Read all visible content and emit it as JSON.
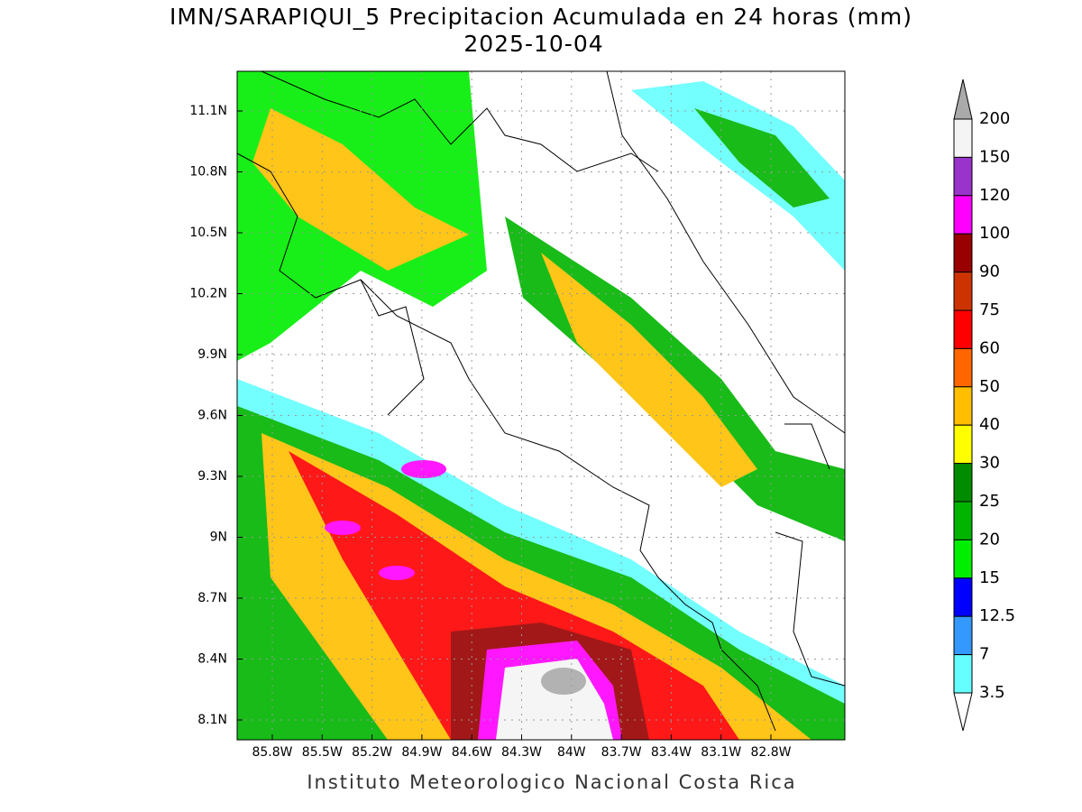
{
  "map": {
    "title": "IMN/SARAPIQUI_5 Precipitacion Acumulada en 24 horas (mm)",
    "date": "2025-10-04",
    "lat_labels": [
      "11.1N",
      "10.8N",
      "10.5N",
      "10.2N",
      "9.9N",
      "9.6N",
      "9.3N",
      "9N",
      "8.7N",
      "8.4N",
      "8.1N"
    ],
    "lon_labels": [
      "85.8W",
      "85.5W",
      "85.2W",
      "84.9W",
      "84.6W",
      "84.3W",
      "84W",
      "83.7W",
      "83.4W",
      "83.1W",
      "82.8W"
    ],
    "legend": {
      "levels": [
        "200",
        "150",
        "120",
        "100",
        "90",
        "75",
        "60",
        "50",
        "40",
        "30",
        "25",
        "20",
        "15",
        "12.5",
        "7",
        "3.5"
      ],
      "colors": [
        "#f4f4f4",
        "#9933cc",
        "#ff00ff",
        "#990000",
        "#cc3300",
        "#ff0000",
        "#ff6600",
        "#ffbf00",
        "#ffff00",
        "#008c00",
        "#00b400",
        "#00ee00",
        "#0000ff",
        "#3399ff",
        "#66ffff"
      ],
      "over_color": "#aaaaaa",
      "under_color": "#ffffff"
    },
    "footer": "Instituto Meteorologico Nacional Costa Rica"
  }
}
